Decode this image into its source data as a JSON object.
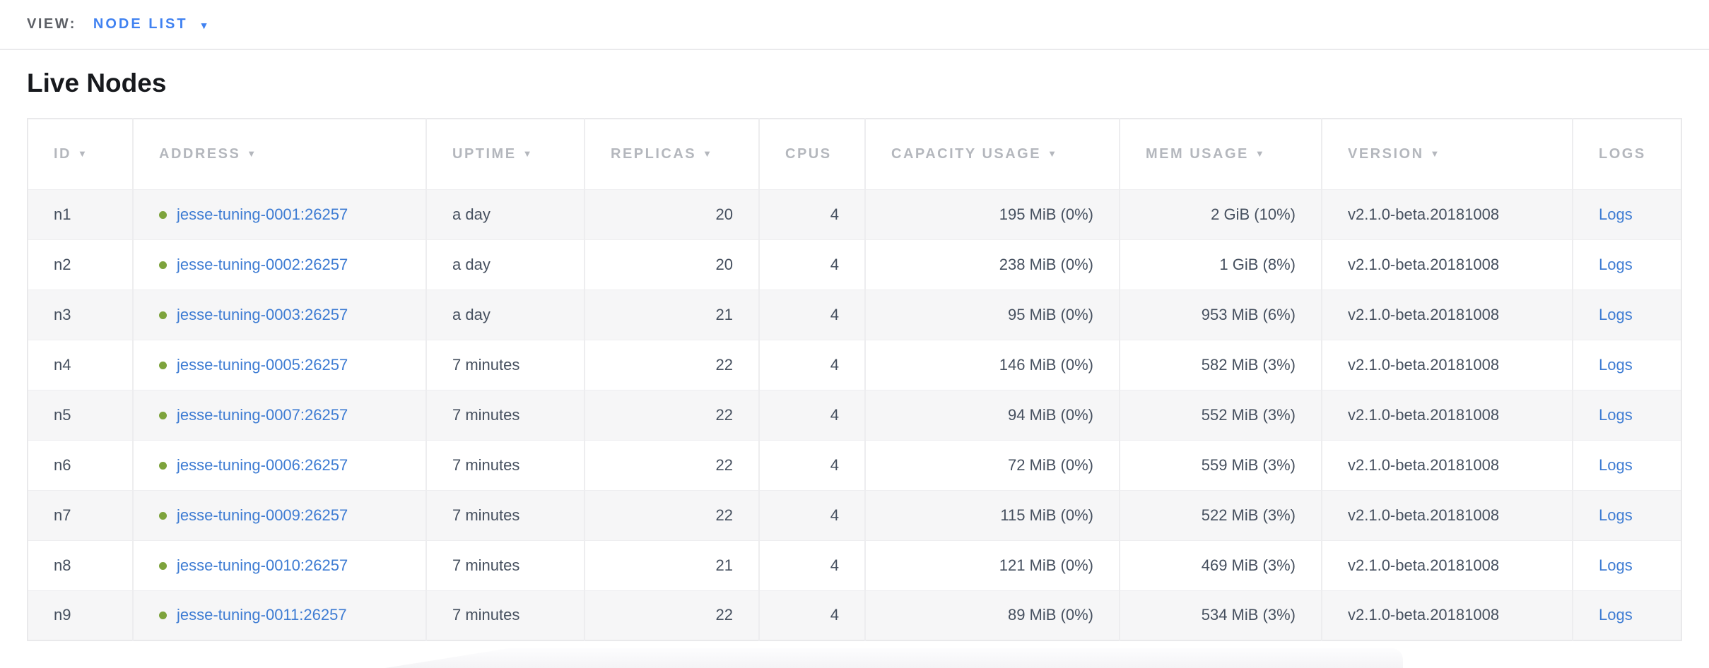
{
  "view_bar": {
    "label": "VIEW:",
    "selected": "NODE LIST",
    "caret": "▼"
  },
  "page_title": "Live Nodes",
  "table": {
    "columns": [
      {
        "key": "id",
        "label": "ID",
        "sortable": true,
        "align": "left"
      },
      {
        "key": "address",
        "label": "ADDRESS",
        "sortable": true,
        "align": "left"
      },
      {
        "key": "uptime",
        "label": "UPTIME",
        "sortable": true,
        "align": "left"
      },
      {
        "key": "replicas",
        "label": "REPLICAS",
        "sortable": true,
        "align": "right"
      },
      {
        "key": "cpus",
        "label": "CPUS",
        "sortable": false,
        "align": "right"
      },
      {
        "key": "capacity",
        "label": "CAPACITY USAGE",
        "sortable": true,
        "align": "right"
      },
      {
        "key": "mem",
        "label": "MEM USAGE",
        "sortable": true,
        "align": "right"
      },
      {
        "key": "version",
        "label": "VERSION",
        "sortable": true,
        "align": "left"
      },
      {
        "key": "logs",
        "label": "LOGS",
        "sortable": false,
        "align": "left"
      }
    ],
    "sort_icon": "▼",
    "rows": [
      {
        "id": "n1",
        "address": "jesse-tuning-0001:26257",
        "uptime": "a day",
        "replicas": "20",
        "cpus": "4",
        "capacity": "195 MiB (0%)",
        "mem": "2 GiB (10%)",
        "version": "v2.1.0-beta.20181008",
        "logs": "Logs"
      },
      {
        "id": "n2",
        "address": "jesse-tuning-0002:26257",
        "uptime": "a day",
        "replicas": "20",
        "cpus": "4",
        "capacity": "238 MiB (0%)",
        "mem": "1 GiB (8%)",
        "version": "v2.1.0-beta.20181008",
        "logs": "Logs"
      },
      {
        "id": "n3",
        "address": "jesse-tuning-0003:26257",
        "uptime": "a day",
        "replicas": "21",
        "cpus": "4",
        "capacity": "95 MiB (0%)",
        "mem": "953 MiB (6%)",
        "version": "v2.1.0-beta.20181008",
        "logs": "Logs"
      },
      {
        "id": "n4",
        "address": "jesse-tuning-0005:26257",
        "uptime": "7 minutes",
        "replicas": "22",
        "cpus": "4",
        "capacity": "146 MiB (0%)",
        "mem": "582 MiB (3%)",
        "version": "v2.1.0-beta.20181008",
        "logs": "Logs"
      },
      {
        "id": "n5",
        "address": "jesse-tuning-0007:26257",
        "uptime": "7 minutes",
        "replicas": "22",
        "cpus": "4",
        "capacity": "94 MiB (0%)",
        "mem": "552 MiB (3%)",
        "version": "v2.1.0-beta.20181008",
        "logs": "Logs"
      },
      {
        "id": "n6",
        "address": "jesse-tuning-0006:26257",
        "uptime": "7 minutes",
        "replicas": "22",
        "cpus": "4",
        "capacity": "72 MiB (0%)",
        "mem": "559 MiB (3%)",
        "version": "v2.1.0-beta.20181008",
        "logs": "Logs"
      },
      {
        "id": "n7",
        "address": "jesse-tuning-0009:26257",
        "uptime": "7 minutes",
        "replicas": "22",
        "cpus": "4",
        "capacity": "115 MiB (0%)",
        "mem": "522 MiB (3%)",
        "version": "v2.1.0-beta.20181008",
        "logs": "Logs"
      },
      {
        "id": "n8",
        "address": "jesse-tuning-0010:26257",
        "uptime": "7 minutes",
        "replicas": "21",
        "cpus": "4",
        "capacity": "121 MiB (0%)",
        "mem": "469 MiB (3%)",
        "version": "v2.1.0-beta.20181008",
        "logs": "Logs"
      },
      {
        "id": "n9",
        "address": "jesse-tuning-0011:26257",
        "uptime": "7 minutes",
        "replicas": "22",
        "cpus": "4",
        "capacity": "89 MiB (0%)",
        "mem": "534 MiB (3%)",
        "version": "v2.1.0-beta.20181008",
        "logs": "Logs"
      }
    ]
  },
  "colors": {
    "view_blue": "#4182f1",
    "view_label_gray": "#5d6066",
    "link_blue": "#3e7cd3",
    "dot_green": "#7da33c",
    "header_gray": "#b4b7bd",
    "cell_text": "#46505f",
    "row_stripe": "#f6f6f7"
  }
}
